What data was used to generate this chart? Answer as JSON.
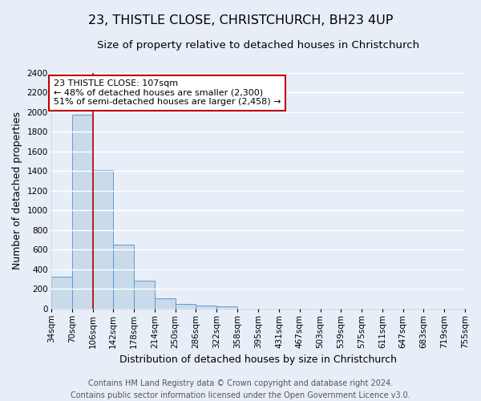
{
  "title": "23, THISTLE CLOSE, CHRISTCHURCH, BH23 4UP",
  "subtitle": "Size of property relative to detached houses in Christchurch",
  "xlabel": "Distribution of detached houses by size in Christchurch",
  "ylabel": "Number of detached properties",
  "bin_edges": [
    34,
    70,
    106,
    142,
    178,
    214,
    250,
    286,
    322,
    358,
    395,
    431,
    467,
    503,
    539,
    575,
    611,
    647,
    683,
    719,
    755
  ],
  "bin_heights": [
    325,
    1975,
    1410,
    650,
    280,
    100,
    45,
    30,
    20,
    0,
    0,
    0,
    0,
    0,
    0,
    0,
    0,
    0,
    0,
    0
  ],
  "bar_color": "#c9daea",
  "bar_edge_color": "#5b9bd5",
  "property_size": 107,
  "property_line_color": "#c00000",
  "annotation_line1": "23 THISTLE CLOSE: 107sqm",
  "annotation_line2": "← 48% of detached houses are smaller (2,300)",
  "annotation_line3": "51% of semi-detached houses are larger (2,458) →",
  "annotation_box_color": "#ffffff",
  "annotation_box_edge_color": "#c00000",
  "ylim": [
    0,
    2400
  ],
  "yticks": [
    0,
    200,
    400,
    600,
    800,
    1000,
    1200,
    1400,
    1600,
    1800,
    2000,
    2200,
    2400
  ],
  "tick_labels": [
    "34sqm",
    "70sqm",
    "106sqm",
    "142sqm",
    "178sqm",
    "214sqm",
    "250sqm",
    "286sqm",
    "322sqm",
    "358sqm",
    "395sqm",
    "431sqm",
    "467sqm",
    "503sqm",
    "539sqm",
    "575sqm",
    "611sqm",
    "647sqm",
    "683sqm",
    "719sqm",
    "755sqm"
  ],
  "footer_line1": "Contains HM Land Registry data © Crown copyright and database right 2024.",
  "footer_line2": "Contains public sector information licensed under the Open Government Licence v3.0.",
  "background_color": "#e8eef8",
  "plot_background_color": "#e8eef8",
  "grid_color": "#ffffff",
  "title_fontsize": 11.5,
  "subtitle_fontsize": 9.5,
  "label_fontsize": 9,
  "tick_fontsize": 7.5,
  "footer_fontsize": 7,
  "annot_fontsize": 8
}
